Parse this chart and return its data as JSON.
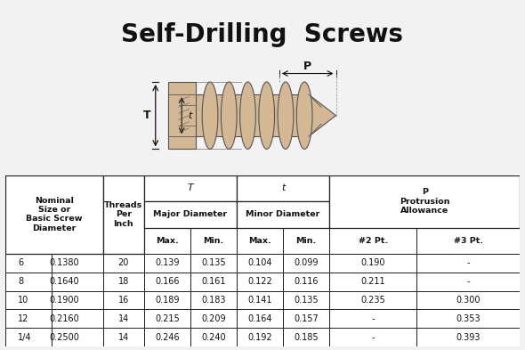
{
  "title": "Self-Drilling  Screws",
  "background_color": "#f2f2f2",
  "table_background": "#ffffff",
  "rows": [
    [
      "6",
      "0.1380",
      "20",
      "0.139",
      "0.135",
      "0.104",
      "0.099",
      "0.190",
      "-"
    ],
    [
      "8",
      "0.1640",
      "18",
      "0.166",
      "0.161",
      "0.122",
      "0.116",
      "0.211",
      "-"
    ],
    [
      "10",
      "0.1900",
      "16",
      "0.189",
      "0.183",
      "0.141",
      "0.135",
      "0.235",
      "0.300"
    ],
    [
      "12",
      "0.2160",
      "14",
      "0.215",
      "0.209",
      "0.164",
      "0.157",
      "-",
      "0.353"
    ],
    [
      "1/4",
      "0.2500",
      "14",
      "0.246",
      "0.240",
      "0.192",
      "0.185",
      "-",
      "0.393"
    ]
  ],
  "border_color": "#222222",
  "text_color": "#111111",
  "screw_color": "#d4b896",
  "screw_edge": "#555555",
  "arrow_color": "#111111"
}
